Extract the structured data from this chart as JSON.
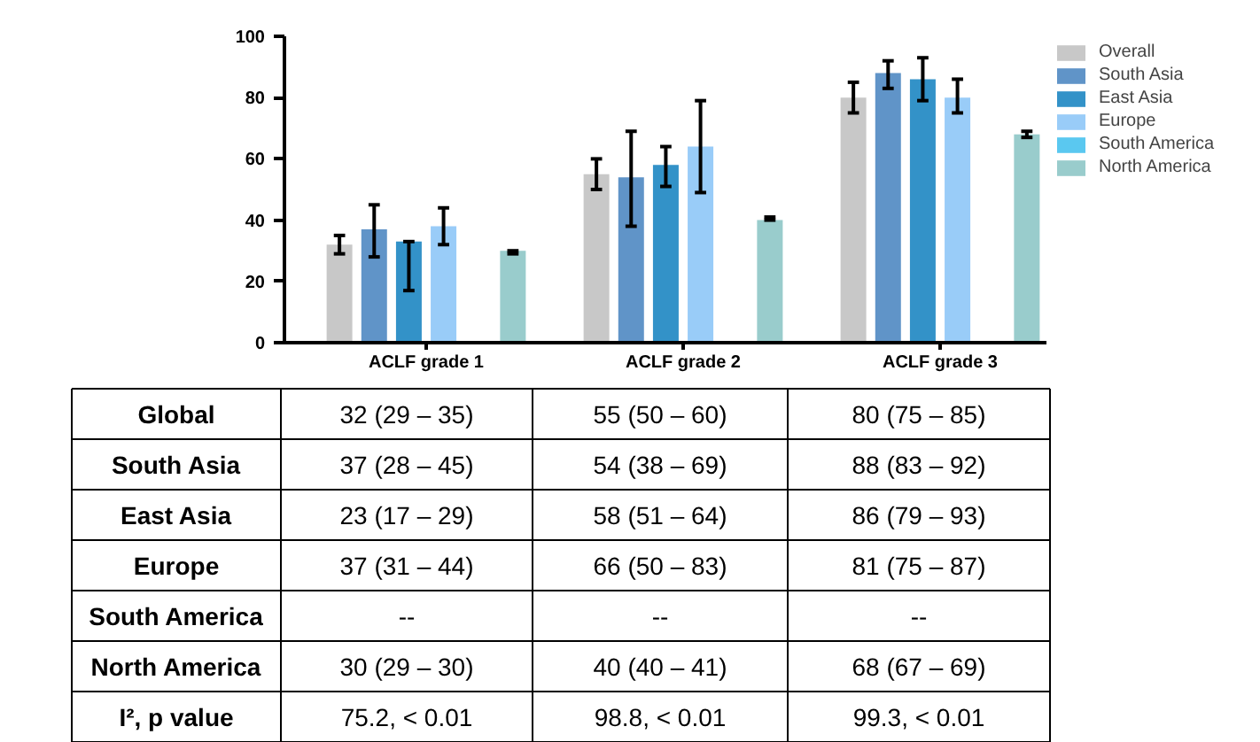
{
  "chart_data": [
    {
      "type": "bar",
      "categories": [
        "ACLF grade 1",
        "ACLF grade 2",
        "ACLF grade 3"
      ],
      "ylim": [
        0,
        100
      ],
      "yticks": [
        0,
        20,
        40,
        60,
        80,
        100
      ],
      "grid": false,
      "legend": "top right",
      "series": [
        {
          "name": "Overall",
          "color": "#c8c8c8",
          "values": [
            32,
            55,
            80
          ],
          "errors": [
            [
              29,
              35
            ],
            [
              50,
              60
            ],
            [
              75,
              85
            ]
          ]
        },
        {
          "name": "South Asia",
          "color": "#6094c8",
          "values": [
            37,
            54,
            88
          ],
          "errors": [
            [
              28,
              45
            ],
            [
              38,
              69
            ],
            [
              83,
              92
            ]
          ]
        },
        {
          "name": "East Asia",
          "color": "#3392c8",
          "values": [
            33,
            58,
            86
          ],
          "errors": [
            [
              17,
              33
            ],
            [
              51,
              64
            ],
            [
              79,
              93
            ]
          ]
        },
        {
          "name": "Europe",
          "color": "#99ccf8",
          "values": [
            38,
            64,
            80
          ],
          "errors": [
            [
              32,
              44
            ],
            [
              49,
              79
            ],
            [
              75,
              86
            ]
          ]
        },
        {
          "name": "South America",
          "color": "#5ac8f0",
          "values": [
            null,
            null,
            null
          ]
        },
        {
          "name": "North America",
          "color": "#99cccc",
          "values": [
            30,
            40,
            68
          ],
          "errors": [
            [
              29,
              30
            ],
            [
              40,
              41
            ],
            [
              67,
              69
            ]
          ]
        }
      ]
    },
    {
      "type": "other",
      "y_categories": [
        "Global",
        "South Asia",
        "East Asia",
        "Europe",
        "South America",
        "North America",
        "I², p value"
      ],
      "cell_labels": [
        [
          "32 (29 – 35)",
          "55 (50 – 60)",
          "80 (75 – 85)"
        ],
        [
          "37 (28 – 45)",
          "54 (38 – 69)",
          "88 (83 – 92)"
        ],
        [
          "23 (17 – 29)",
          "58 (51 – 64)",
          "86 (79 – 93)"
        ],
        [
          "37 (31 – 44)",
          "66 (50 – 83)",
          "81 (75 – 87)"
        ],
        [
          "--",
          "--",
          "--"
        ],
        [
          "30 (29 – 30)",
          "40 (40 – 41)",
          "68 (67 – 69)"
        ],
        [
          "75.2, < 0.01",
          "98.8, < 0.01",
          "99.3, < 0.01"
        ]
      ]
    }
  ]
}
